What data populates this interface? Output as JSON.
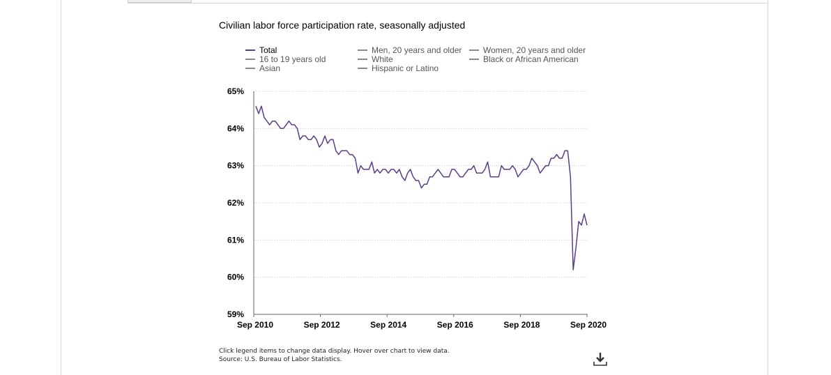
{
  "chart_title": "Civilian labor force participation rate, seasonally adjusted",
  "legend": [
    {
      "label": "Total",
      "active": true
    },
    {
      "label": "16 to 19 years old",
      "active": false
    },
    {
      "label": "Asian",
      "active": false
    },
    {
      "label": "Men, 20 years and older",
      "active": false
    },
    {
      "label": "White",
      "active": false
    },
    {
      "label": "Hispanic or Latino",
      "active": false
    },
    {
      "label": "Women, 20 years and older",
      "active": false
    },
    {
      "label": "Black or African American",
      "active": false
    }
  ],
  "footnote": {
    "line1": "Click legend items to change data display. Hover over chart to view data.",
    "line2": "Source: U.S. Bureau of Labor Statistics."
  },
  "icons": {
    "download": "download-icon"
  },
  "colors": {
    "series": "#5b3e86",
    "grid": "#c8c8c8",
    "inactive_legend": "#8a8a8a"
  },
  "chart_data": {
    "type": "line",
    "title": "Civilian labor force participation rate, seasonally adjusted",
    "ylim": [
      59,
      65
    ],
    "y_ticks": [
      65,
      64,
      63,
      62,
      61,
      60,
      59
    ],
    "y_tick_labels": [
      "65%",
      "64%",
      "63%",
      "62%",
      "61%",
      "60%",
      "59%"
    ],
    "x_ticks": [
      "Sep 2010",
      "Sep 2012",
      "Sep 2014",
      "Sep 2016",
      "Sep 2018",
      "Sep 2020"
    ],
    "x_start": "Sep 2010",
    "x_end": "Sep 2020",
    "grid": "horizontal dotted",
    "legend_position": "top",
    "series": [
      {
        "name": "Total",
        "values": [
          64.6,
          64.4,
          64.6,
          64.3,
          64.2,
          64.1,
          64.2,
          64.2,
          64.1,
          64.0,
          64.0,
          64.1,
          64.2,
          64.1,
          64.1,
          64.0,
          63.7,
          63.8,
          63.8,
          63.7,
          63.7,
          63.8,
          63.7,
          63.5,
          63.6,
          63.8,
          63.6,
          63.7,
          63.7,
          63.4,
          63.3,
          63.4,
          63.4,
          63.4,
          63.3,
          63.3,
          63.2,
          62.8,
          63.0,
          62.9,
          62.9,
          62.9,
          63.1,
          62.8,
          62.9,
          62.8,
          62.9,
          62.9,
          62.8,
          62.9,
          62.9,
          62.8,
          62.9,
          62.7,
          62.6,
          62.8,
          62.9,
          62.7,
          62.6,
          62.6,
          62.4,
          62.5,
          62.5,
          62.7,
          62.7,
          62.8,
          62.9,
          62.8,
          62.7,
          62.7,
          62.7,
          62.9,
          62.9,
          62.8,
          62.7,
          62.7,
          62.8,
          62.9,
          62.9,
          63.0,
          62.8,
          62.8,
          62.8,
          62.9,
          63.1,
          62.7,
          62.7,
          62.7,
          62.7,
          63.0,
          62.9,
          62.9,
          62.9,
          63.0,
          62.9,
          62.7,
          62.8,
          62.9,
          62.9,
          63.0,
          63.2,
          63.1,
          63.0,
          62.8,
          62.9,
          63.0,
          63.0,
          63.2,
          63.2,
          63.3,
          63.2,
          63.2,
          63.4,
          63.4,
          62.7,
          60.2,
          60.8,
          61.5,
          61.4,
          61.7,
          61.4
        ]
      }
    ]
  }
}
